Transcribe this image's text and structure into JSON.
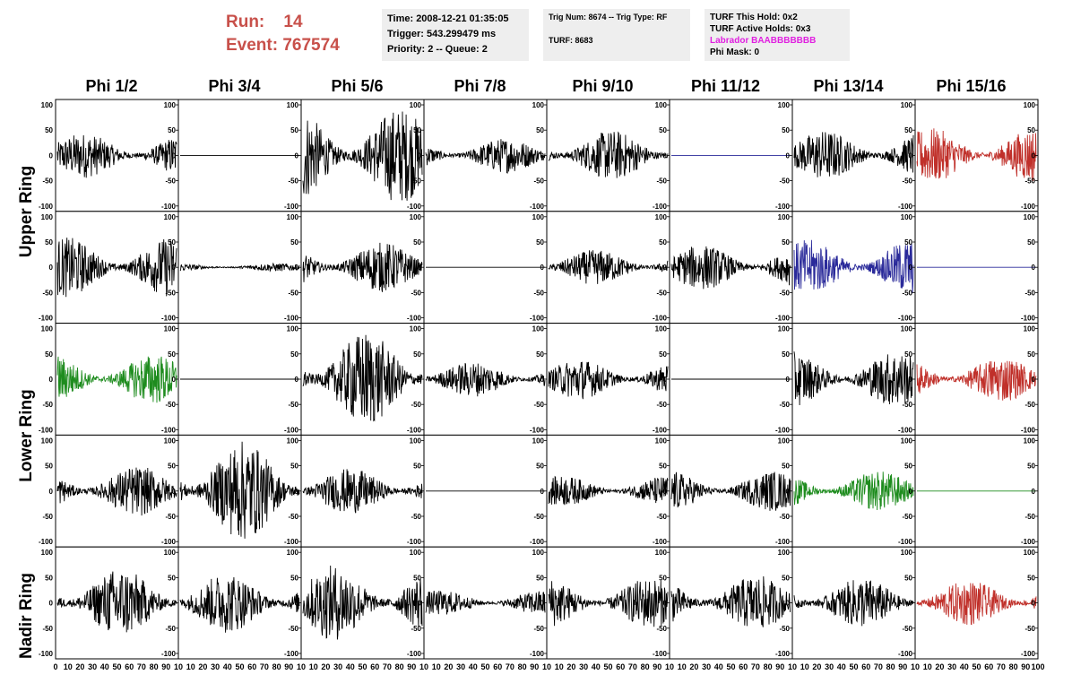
{
  "header": {
    "run_label": "Run:",
    "run_value": "14",
    "event_label": "Event:",
    "event_value": "767574"
  },
  "info_box_1": {
    "time": "Time: 2008-12-21 01:35:05",
    "trigger": "Trigger: 543.299479 ms",
    "priority": "Priority: 2 -- Queue: 2"
  },
  "info_box_2": {
    "trig": "Trig Num: 8674 -- Trig Type: RF",
    "turf": "TURF: 8683"
  },
  "info_box_3": {
    "this_hold": "TURF This Hold: 0x2",
    "active_holds": "TURF Active Holds: 0x3",
    "labrador": "Labrador BAABBBBBBB",
    "phi_mask": "Phi Mask: 0"
  },
  "columns": [
    "Phi 1/2",
    "Phi 3/4",
    "Phi 5/6",
    "Phi 7/8",
    "Phi 9/10",
    "Phi 11/12",
    "Phi 13/14",
    "Phi 15/16"
  ],
  "ring_labels": {
    "upper": "Upper Ring",
    "lower": "Lower Ring",
    "nadir": "Nadir Ring"
  },
  "axes": {
    "y_ticks": [
      100,
      50,
      0,
      -50,
      -100
    ],
    "x_ticks_first": [
      "0",
      "10",
      "20",
      "30",
      "40",
      "50",
      "60",
      "70",
      "80",
      "90",
      "10"
    ],
    "x_ticks_middle": [
      "10",
      "20",
      "30",
      "40",
      "50",
      "60",
      "70",
      "80",
      "90",
      "10"
    ],
    "x_ticks_last": [
      "10",
      "20",
      "30",
      "40",
      "50",
      "60",
      "70",
      "80",
      "90",
      "100"
    ]
  },
  "colors": {
    "trace_default": "#000000",
    "trace_red": "#c0302a",
    "trace_green": "#1e8c1e",
    "trace_blue": "#2a2a9a",
    "run_text": "#c8504a",
    "labrador": "#e020e0",
    "info_bg": "#eeeeee"
  },
  "trace_color_grid": [
    [
      "black",
      "flat-black",
      "black",
      "black",
      "black",
      "flat-blue",
      "black",
      "red"
    ],
    [
      "black",
      "black",
      "black",
      "flat-black",
      "black",
      "black",
      "blue",
      "flat-blue"
    ],
    [
      "green",
      "flat-black",
      "black",
      "black",
      "black",
      "flat-black",
      "black",
      "red"
    ],
    [
      "black",
      "black",
      "black",
      "flat-black",
      "black",
      "black",
      "green",
      "flat-green"
    ],
    [
      "black",
      "black",
      "black",
      "black",
      "black",
      "black",
      "black",
      "red"
    ]
  ],
  "trace_amplitude_grid": [
    [
      0.45,
      0,
      0.95,
      0.35,
      0.5,
      0,
      0.5,
      0.55
    ],
    [
      0.6,
      0.08,
      0.5,
      0,
      0.35,
      0.45,
      0.55,
      0
    ],
    [
      0.5,
      0,
      0.95,
      0.35,
      0.4,
      0,
      0.55,
      0.45
    ],
    [
      0.5,
      1.0,
      0.45,
      0,
      0.3,
      0.4,
      0.4,
      0
    ],
    [
      0.7,
      0.6,
      0.75,
      0.25,
      0.5,
      0.55,
      0.5,
      0.45
    ]
  ]
}
